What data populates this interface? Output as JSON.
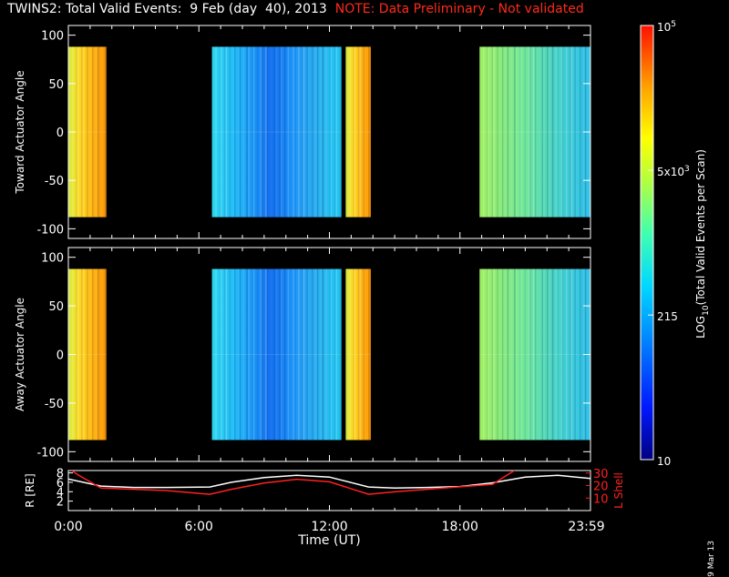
{
  "title": {
    "main": "TWINS2: Total Valid Events:  9 Feb (day  40), 2013",
    "note": "NOTE: Data Preliminary - Not validated"
  },
  "stamp": "9 Mar 13",
  "colors": {
    "background": "#000000",
    "axes": "#ffffff",
    "note": "#ff2a1a",
    "rshell": "#ffffff",
    "lshell": "#ff2020"
  },
  "chart_data": [
    {
      "type": "heatmap",
      "panel": "toward",
      "ylabel": "Toward Actuator Angle",
      "xlim": [
        0,
        24
      ],
      "ylim": [
        -110,
        110
      ],
      "yticks": [
        -100,
        -50,
        0,
        50,
        100
      ],
      "y_extent": [
        -88,
        88
      ],
      "segments": [
        {
          "start": 0.0,
          "end": 1.75,
          "level": "high"
        },
        {
          "start": 6.6,
          "end": 12.55,
          "level": "low"
        },
        {
          "start": 12.75,
          "end": 13.9,
          "level": "high"
        },
        {
          "start": 18.9,
          "end": 23.98,
          "level": "mid"
        }
      ]
    },
    {
      "type": "heatmap",
      "panel": "away",
      "ylabel": "Away Actuator Angle",
      "xlim": [
        0,
        24
      ],
      "ylim": [
        -110,
        110
      ],
      "yticks": [
        -100,
        -50,
        0,
        50,
        100
      ],
      "y_extent": [
        -88,
        88
      ],
      "segments": [
        {
          "start": 0.0,
          "end": 1.75,
          "level": "high"
        },
        {
          "start": 6.6,
          "end": 12.55,
          "level": "low"
        },
        {
          "start": 12.75,
          "end": 13.9,
          "level": "high"
        },
        {
          "start": 18.9,
          "end": 23.98,
          "level": "mid"
        }
      ]
    },
    {
      "type": "line",
      "panel": "orbit",
      "xlabel": "Time (UT)",
      "xticks": [
        "0:00",
        "6:00",
        "12:00",
        "18:00",
        "23:59"
      ],
      "xlim": [
        0,
        24
      ],
      "ylabel_left": "R [RE]",
      "ylabel_right": "L Shell",
      "yticks_left": [
        "2",
        "4",
        "6",
        "8"
      ],
      "yticks_right": [
        "10",
        "20",
        "30"
      ],
      "ylim_left": [
        0,
        8.5
      ],
      "ylim_right": [
        0,
        32
      ],
      "series": [
        {
          "name": "R",
          "axis": "left",
          "color": "#ffffff",
          "x": [
            0,
            1.5,
            3,
            4.5,
            6.5,
            7.5,
            9,
            10.5,
            12,
            13.8,
            15,
            16.5,
            18,
            19.5,
            21,
            22.5,
            24
          ],
          "y": [
            6.7,
            5.2,
            4.9,
            4.9,
            5.0,
            6.0,
            7.0,
            7.5,
            7.1,
            5.0,
            4.8,
            4.9,
            5.1,
            5.9,
            7.1,
            7.5,
            6.8
          ]
        },
        {
          "name": "L",
          "axis": "right",
          "color": "#ff2020",
          "x": [
            0.15,
            0.5,
            1.5,
            3,
            4.5,
            6.5,
            7.5,
            9,
            10.5,
            12,
            13.8,
            15,
            16.5,
            18,
            19.5,
            20.5
          ],
          "y": [
            32,
            28,
            18,
            17,
            16,
            13,
            17,
            22,
            25,
            23,
            13,
            15,
            17,
            19,
            21,
            32
          ]
        }
      ]
    }
  ],
  "colorbar": {
    "ylabel": "LOG10(Total Valid Events per Scan)",
    "ticks": [
      {
        "label": "10",
        "frac": 0.0
      },
      {
        "label": "215",
        "frac": 0.333
      },
      {
        "label": "5x103",
        "frac": 0.6667
      },
      {
        "label": "105",
        "frac": 1.0
      }
    ]
  }
}
